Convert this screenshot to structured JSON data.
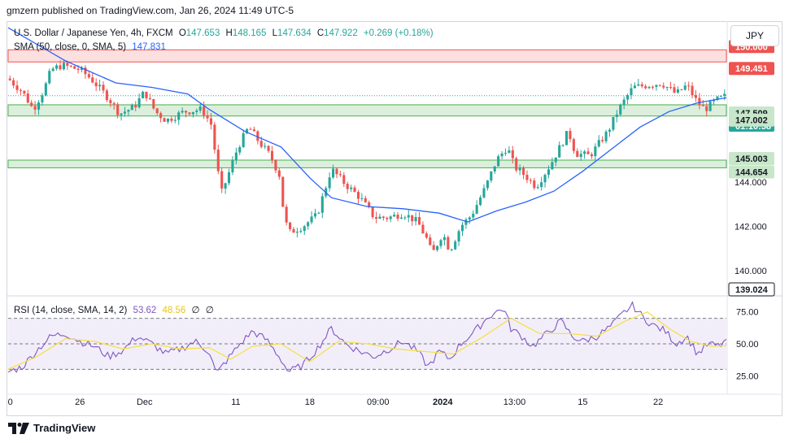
{
  "header": {
    "publisher": "gmzern published on TradingView.com, Jan 26, 2024 11:49 UTC-5",
    "currency_button": "JPY"
  },
  "legend": {
    "symbol": "U.S. Dollar / Japanese Yen, 4h, FXCM",
    "open_label": "O",
    "open": "147.653",
    "high_label": "H",
    "high": "148.165",
    "low_label": "L",
    "low": "147.634",
    "close_label": "C",
    "close": "147.922",
    "change": "+0.269 (+0.18%)",
    "sma_label": "SMA (50, close, 0, SMA, 5)",
    "sma_value": "147.831",
    "rsi_label": "RSI (14, close, SMA, 14, 2)",
    "rsi_value": "53.62",
    "rsi_sma_value": "48.56",
    "extra1": "∅",
    "extra2": "∅"
  },
  "footer": {
    "brand": "TradingView"
  },
  "colors": {
    "up": "#26a69a",
    "down": "#ef5350",
    "sma": "#2962ff",
    "rsi": "#7e57c2",
    "rsi_sma": "#f5e04a",
    "zone_red": "#ef5350",
    "zone_green": "#4caf50"
  },
  "chart_data": [
    {
      "type": "candlestick",
      "title": "U.S. Dollar / Japanese Yen, 4h, FXCM",
      "ylim": [
        139.0,
        151.3
      ],
      "y_ticks": [
        140.0,
        142.0,
        144.0
      ],
      "x_ticks": [
        "0",
        "26",
        "Dec",
        "11",
        "18",
        "09:00",
        "2024",
        "13:00",
        "15",
        "22"
      ],
      "zones": [
        {
          "top": 150.0,
          "bottom": 149.451,
          "color": "red"
        },
        {
          "top": 147.509,
          "bottom": 147.002,
          "color": "green"
        },
        {
          "top": 145.003,
          "bottom": 144.654,
          "color": "green"
        }
      ],
      "price_labels": [
        {
          "value": 150.0,
          "text": "150.000",
          "kind": "zone-red"
        },
        {
          "value": 149.451,
          "text": "149.451",
          "kind": "zone-red"
        },
        {
          "value": 147.922,
          "text": "147.922",
          "kind": "last",
          "sub": "01:10:58"
        },
        {
          "value": 147.509,
          "text": "147.509",
          "kind": "zone-green"
        },
        {
          "value": 147.002,
          "text": "147.002",
          "kind": "zone-green"
        },
        {
          "value": 145.003,
          "text": "145.003",
          "kind": "zone-green"
        },
        {
          "value": 144.654,
          "text": "144.654",
          "kind": "zone-green"
        },
        {
          "value": 139.024,
          "text": "139.024",
          "kind": "low"
        }
      ],
      "close_path": [
        {
          "t": 0,
          "v": 148.7
        },
        {
          "t": 0.02,
          "v": 148.1
        },
        {
          "t": 0.035,
          "v": 147.3
        },
        {
          "t": 0.05,
          "v": 148.2
        },
        {
          "t": 0.06,
          "v": 149.1
        },
        {
          "t": 0.075,
          "v": 149.3
        },
        {
          "t": 0.1,
          "v": 149.1
        },
        {
          "t": 0.115,
          "v": 148.7
        },
        {
          "t": 0.14,
          "v": 147.8
        },
        {
          "t": 0.155,
          "v": 147.1
        },
        {
          "t": 0.175,
          "v": 147.4
        },
        {
          "t": 0.19,
          "v": 148.1
        },
        {
          "t": 0.205,
          "v": 147.2
        },
        {
          "t": 0.22,
          "v": 146.8
        },
        {
          "t": 0.245,
          "v": 147.2
        },
        {
          "t": 0.27,
          "v": 147.3
        },
        {
          "t": 0.283,
          "v": 146.6
        },
        {
          "t": 0.29,
          "v": 144.9
        },
        {
          "t": 0.297,
          "v": 143.5
        },
        {
          "t": 0.305,
          "v": 144.2
        },
        {
          "t": 0.32,
          "v": 145.6
        },
        {
          "t": 0.335,
          "v": 146.5
        },
        {
          "t": 0.35,
          "v": 145.8
        },
        {
          "t": 0.365,
          "v": 145.2
        },
        {
          "t": 0.378,
          "v": 144.3
        },
        {
          "t": 0.383,
          "v": 142.8
        },
        {
          "t": 0.39,
          "v": 141.7
        },
        {
          "t": 0.41,
          "v": 142.0
        },
        {
          "t": 0.43,
          "v": 142.5
        },
        {
          "t": 0.45,
          "v": 144.6
        },
        {
          "t": 0.47,
          "v": 143.9
        },
        {
          "t": 0.49,
          "v": 143.3
        },
        {
          "t": 0.51,
          "v": 142.4
        },
        {
          "t": 0.53,
          "v": 142.4
        },
        {
          "t": 0.55,
          "v": 142.6
        },
        {
          "t": 0.57,
          "v": 142.2
        },
        {
          "t": 0.585,
          "v": 141.3
        },
        {
          "t": 0.59,
          "v": 140.7
        },
        {
          "t": 0.605,
          "v": 141.7
        },
        {
          "t": 0.615,
          "v": 140.9
        },
        {
          "t": 0.63,
          "v": 142.0
        },
        {
          "t": 0.645,
          "v": 142.5
        },
        {
          "t": 0.665,
          "v": 143.8
        },
        {
          "t": 0.68,
          "v": 145.0
        },
        {
          "t": 0.695,
          "v": 145.6
        },
        {
          "t": 0.705,
          "v": 144.7
        },
        {
          "t": 0.72,
          "v": 144.3
        },
        {
          "t": 0.735,
          "v": 143.8
        },
        {
          "t": 0.755,
          "v": 144.8
        },
        {
          "t": 0.78,
          "v": 146.3
        },
        {
          "t": 0.79,
          "v": 145.3
        },
        {
          "t": 0.81,
          "v": 145.2
        },
        {
          "t": 0.835,
          "v": 146.3
        },
        {
          "t": 0.85,
          "v": 147.3
        },
        {
          "t": 0.87,
          "v": 148.3
        },
        {
          "t": 0.89,
          "v": 148.4
        },
        {
          "t": 0.91,
          "v": 148.5
        },
        {
          "t": 0.93,
          "v": 148.0
        },
        {
          "t": 0.945,
          "v": 148.4
        },
        {
          "t": 0.96,
          "v": 147.6
        },
        {
          "t": 0.97,
          "v": 147.3
        },
        {
          "t": 0.985,
          "v": 147.7
        },
        {
          "t": 1.0,
          "v": 147.922
        }
      ]
    },
    {
      "type": "line",
      "title": "SMA (50, close, 0, SMA, 5)",
      "series": [
        {
          "name": "SMA (50, close, 0, SMA, 5)",
          "points": [
            {
              "t": 0,
              "v": 151.0
            },
            {
              "t": 0.08,
              "v": 149.5
            },
            {
              "t": 0.15,
              "v": 148.5
            },
            {
              "t": 0.2,
              "v": 148.3
            },
            {
              "t": 0.25,
              "v": 148.0
            },
            {
              "t": 0.28,
              "v": 147.3
            },
            {
              "t": 0.33,
              "v": 146.3
            },
            {
              "t": 0.38,
              "v": 145.6
            },
            {
              "t": 0.42,
              "v": 144.2
            },
            {
              "t": 0.45,
              "v": 143.3
            },
            {
              "t": 0.5,
              "v": 142.9
            },
            {
              "t": 0.55,
              "v": 142.8
            },
            {
              "t": 0.6,
              "v": 142.6
            },
            {
              "t": 0.64,
              "v": 142.2
            },
            {
              "t": 0.68,
              "v": 142.7
            },
            {
              "t": 0.72,
              "v": 143.1
            },
            {
              "t": 0.76,
              "v": 143.6
            },
            {
              "t": 0.8,
              "v": 144.5
            },
            {
              "t": 0.84,
              "v": 145.5
            },
            {
              "t": 0.88,
              "v": 146.5
            },
            {
              "t": 0.92,
              "v": 147.2
            },
            {
              "t": 0.96,
              "v": 147.6
            },
            {
              "t": 1.0,
              "v": 147.831
            }
          ]
        }
      ]
    },
    {
      "type": "line",
      "title": "RSI (14, close, SMA, 14, 2)",
      "ylim": [
        15,
        85
      ],
      "y_ticks": [
        25.0,
        50.0,
        75.0
      ],
      "band": [
        30,
        70
      ],
      "series": [
        {
          "name": "RSI",
          "points": [
            {
              "t": 0,
              "v": 28
            },
            {
              "t": 0.02,
              "v": 32
            },
            {
              "t": 0.04,
              "v": 45
            },
            {
              "t": 0.06,
              "v": 56
            },
            {
              "t": 0.08,
              "v": 58
            },
            {
              "t": 0.1,
              "v": 52
            },
            {
              "t": 0.12,
              "v": 48
            },
            {
              "t": 0.14,
              "v": 40
            },
            {
              "t": 0.16,
              "v": 45
            },
            {
              "t": 0.18,
              "v": 56
            },
            {
              "t": 0.2,
              "v": 50
            },
            {
              "t": 0.22,
              "v": 42
            },
            {
              "t": 0.24,
              "v": 46
            },
            {
              "t": 0.26,
              "v": 52
            },
            {
              "t": 0.28,
              "v": 44
            },
            {
              "t": 0.29,
              "v": 26
            },
            {
              "t": 0.3,
              "v": 34
            },
            {
              "t": 0.32,
              "v": 48
            },
            {
              "t": 0.34,
              "v": 60
            },
            {
              "t": 0.36,
              "v": 53
            },
            {
              "t": 0.38,
              "v": 38
            },
            {
              "t": 0.39,
              "v": 28
            },
            {
              "t": 0.41,
              "v": 33
            },
            {
              "t": 0.43,
              "v": 46
            },
            {
              "t": 0.45,
              "v": 62
            },
            {
              "t": 0.47,
              "v": 50
            },
            {
              "t": 0.49,
              "v": 44
            },
            {
              "t": 0.51,
              "v": 40
            },
            {
              "t": 0.53,
              "v": 46
            },
            {
              "t": 0.55,
              "v": 52
            },
            {
              "t": 0.57,
              "v": 44
            },
            {
              "t": 0.585,
              "v": 32
            },
            {
              "t": 0.6,
              "v": 44
            },
            {
              "t": 0.615,
              "v": 38
            },
            {
              "t": 0.63,
              "v": 50
            },
            {
              "t": 0.65,
              "v": 60
            },
            {
              "t": 0.67,
              "v": 72
            },
            {
              "t": 0.69,
              "v": 78
            },
            {
              "t": 0.7,
              "v": 62
            },
            {
              "t": 0.715,
              "v": 56
            },
            {
              "t": 0.73,
              "v": 48
            },
            {
              "t": 0.75,
              "v": 58
            },
            {
              "t": 0.77,
              "v": 68
            },
            {
              "t": 0.785,
              "v": 56
            },
            {
              "t": 0.8,
              "v": 52
            },
            {
              "t": 0.82,
              "v": 56
            },
            {
              "t": 0.84,
              "v": 64
            },
            {
              "t": 0.86,
              "v": 76
            },
            {
              "t": 0.87,
              "v": 80
            },
            {
              "t": 0.885,
              "v": 70
            },
            {
              "t": 0.9,
              "v": 64
            },
            {
              "t": 0.915,
              "v": 60
            },
            {
              "t": 0.93,
              "v": 50
            },
            {
              "t": 0.945,
              "v": 56
            },
            {
              "t": 0.96,
              "v": 42
            },
            {
              "t": 0.975,
              "v": 50
            },
            {
              "t": 0.99,
              "v": 48
            },
            {
              "t": 1.0,
              "v": 53.62
            }
          ]
        },
        {
          "name": "RSI SMA",
          "points": [
            {
              "t": 0,
              "v": 30
            },
            {
              "t": 0.04,
              "v": 40
            },
            {
              "t": 0.08,
              "v": 54
            },
            {
              "t": 0.12,
              "v": 52
            },
            {
              "t": 0.16,
              "v": 46
            },
            {
              "t": 0.2,
              "v": 50
            },
            {
              "t": 0.24,
              "v": 46
            },
            {
              "t": 0.28,
              "v": 47
            },
            {
              "t": 0.31,
              "v": 38
            },
            {
              "t": 0.34,
              "v": 48
            },
            {
              "t": 0.38,
              "v": 50
            },
            {
              "t": 0.42,
              "v": 36
            },
            {
              "t": 0.46,
              "v": 52
            },
            {
              "t": 0.5,
              "v": 50
            },
            {
              "t": 0.54,
              "v": 46
            },
            {
              "t": 0.58,
              "v": 44
            },
            {
              "t": 0.62,
              "v": 42
            },
            {
              "t": 0.66,
              "v": 55
            },
            {
              "t": 0.7,
              "v": 70
            },
            {
              "t": 0.74,
              "v": 58
            },
            {
              "t": 0.78,
              "v": 58
            },
            {
              "t": 0.82,
              "v": 56
            },
            {
              "t": 0.86,
              "v": 68
            },
            {
              "t": 0.89,
              "v": 75
            },
            {
              "t": 0.92,
              "v": 62
            },
            {
              "t": 0.95,
              "v": 52
            },
            {
              "t": 0.98,
              "v": 48
            },
            {
              "t": 1.0,
              "v": 48.56
            }
          ]
        }
      ]
    }
  ]
}
